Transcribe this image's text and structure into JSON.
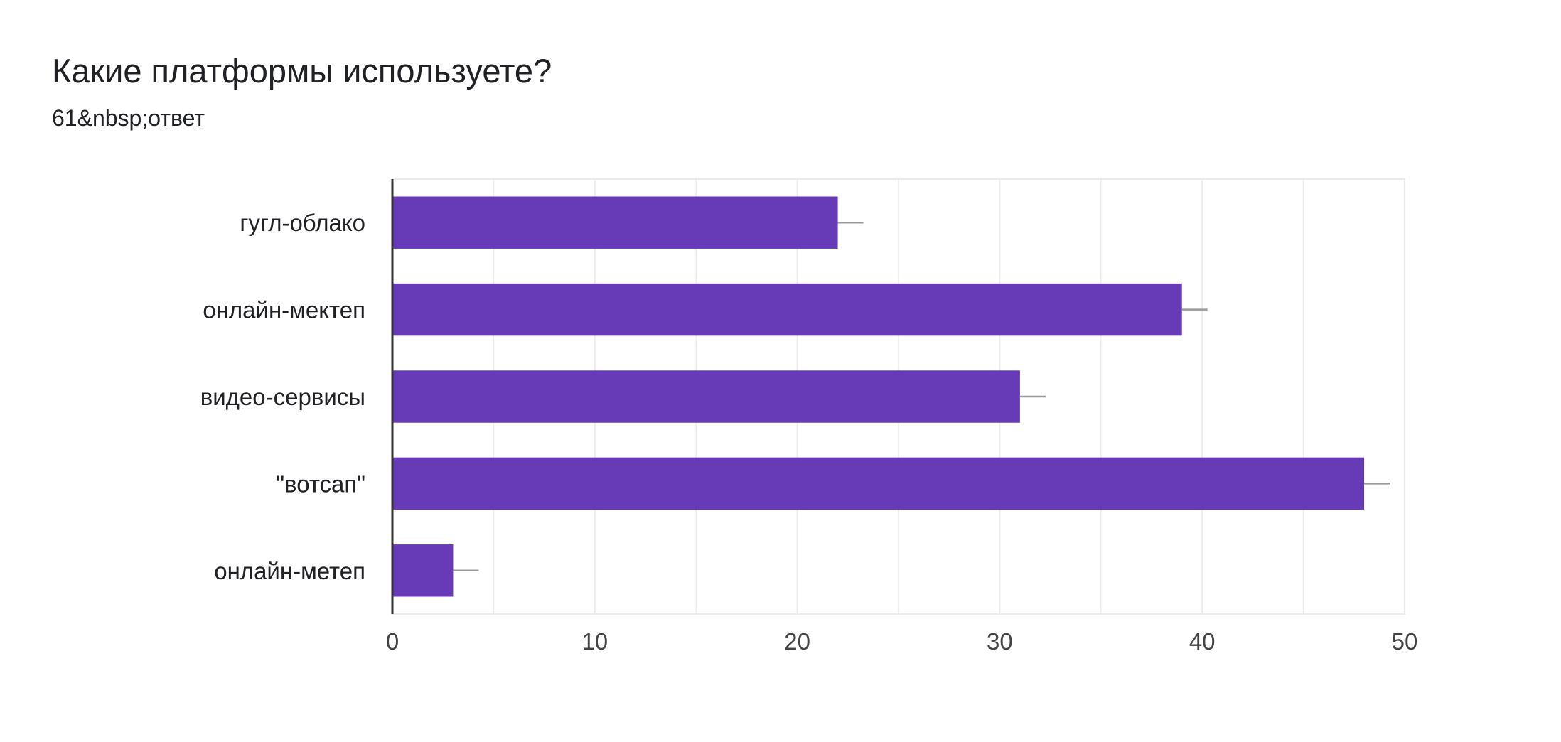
{
  "header": {
    "title": "Какие платформы используете?",
    "subtitle": "61&nbsp;ответ"
  },
  "chart_data": {
    "type": "bar",
    "orientation": "horizontal",
    "categories": [
      "гугл-облако",
      "онлайн-мектеп",
      "видео-сервисы",
      "\"вотсап\"",
      "онлайн-метеп"
    ],
    "values": [
      22,
      39,
      31,
      48,
      3
    ],
    "xlim": [
      0,
      50
    ],
    "xticks": [
      0,
      10,
      20,
      30,
      40,
      50
    ],
    "grid": true,
    "error_bars": true,
    "colors": {
      "bar": "#673ab7",
      "grid": "#ebebeb",
      "axis": "#333333",
      "error": "#999999"
    }
  }
}
